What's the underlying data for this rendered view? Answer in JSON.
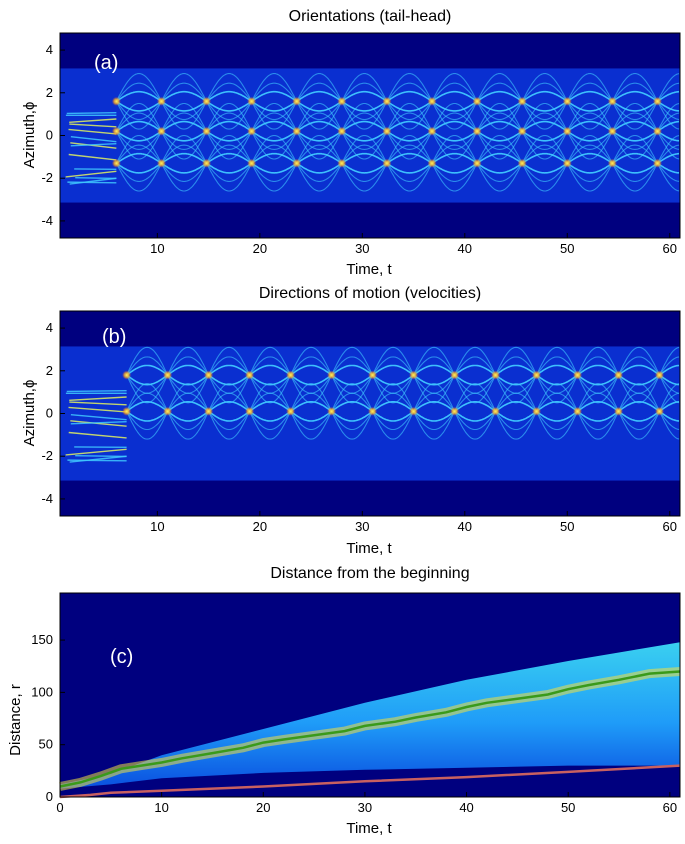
{
  "chart_data": [
    {
      "type": "heatmap",
      "panel_label": "(a)",
      "title": "Orientations (tail-head)",
      "xlabel": "Time, t",
      "ylabel": "Azimuth,",
      "ylabel_symbol": "ϕ",
      "xlim": [
        0.5,
        61
      ],
      "ylim": [
        -4.8,
        4.8
      ],
      "xticks": [
        10,
        20,
        30,
        40,
        50,
        60
      ],
      "yticks": [
        -4,
        -2,
        0,
        2,
        4
      ],
      "data_range_y": [
        -3.14,
        3.14
      ],
      "colormap": "jet",
      "crossing_period": 4.4,
      "crossing_start": 6,
      "crossing_azimuths": [
        1.6,
        0.2,
        -1.3
      ],
      "colors": {
        "background": "#00007f",
        "band": "#0a2fd0",
        "trace": "#40c8ff"
      }
    },
    {
      "type": "heatmap",
      "panel_label": "(b)",
      "title": "Directions of motion (velocities)",
      "xlabel": "Time, t",
      "ylabel": "Azimuth,",
      "ylabel_symbol": "ϕ",
      "xlim": [
        0.5,
        61
      ],
      "ylim": [
        -4.8,
        4.8
      ],
      "xticks": [
        10,
        20,
        30,
        40,
        50,
        60
      ],
      "yticks": [
        -4,
        -2,
        0,
        2,
        4
      ],
      "data_range_y": [
        -3.14,
        3.14
      ],
      "colormap": "jet",
      "crossing_period": 4.0,
      "crossing_start": 7,
      "crossing_azimuths": [
        1.8,
        0.1
      ],
      "colors": {
        "background": "#00007f",
        "band": "#0a2fd0",
        "trace": "#40c8ff"
      }
    },
    {
      "type": "heatmap",
      "panel_label": "(c)",
      "title": "Distance from the beginning",
      "xlabel": "Time, t",
      "ylabel": "Distance, r",
      "xlim": [
        0,
        61
      ],
      "ylim": [
        0,
        195
      ],
      "xticks": [
        0,
        10,
        20,
        30,
        40,
        50,
        60
      ],
      "yticks": [
        0,
        50,
        100,
        150
      ],
      "colormap": "jet",
      "density_upper_edge": {
        "x": [
          0,
          5,
          10,
          20,
          30,
          40,
          50,
          61
        ],
        "y": [
          12,
          22,
          40,
          65,
          90,
          112,
          130,
          148
        ]
      },
      "density_lower_edge": {
        "x": [
          0,
          5,
          10,
          20,
          30,
          40,
          50,
          61
        ],
        "y": [
          8,
          12,
          18,
          23,
          26,
          28,
          30,
          30
        ]
      },
      "series": [
        {
          "name": "green",
          "color": "#3a9a1a",
          "x": [
            0,
            2,
            4,
            6,
            8,
            10,
            12,
            15,
            18,
            20,
            22,
            25,
            28,
            30,
            33,
            35,
            38,
            40,
            42,
            45,
            48,
            50,
            52,
            55,
            58,
            61
          ],
          "y": [
            10,
            14,
            20,
            27,
            30,
            33,
            37,
            42,
            47,
            52,
            55,
            59,
            63,
            68,
            72,
            76,
            81,
            86,
            90,
            94,
            98,
            103,
            107,
            112,
            118,
            120
          ]
        },
        {
          "name": "red",
          "color": "#c86060",
          "x": [
            0,
            3,
            5,
            10,
            20,
            30,
            40,
            50,
            61
          ],
          "y": [
            0,
            2,
            4,
            6,
            10,
            15,
            19,
            24,
            30
          ]
        }
      ],
      "colors": {
        "background": "#00007f"
      }
    }
  ]
}
